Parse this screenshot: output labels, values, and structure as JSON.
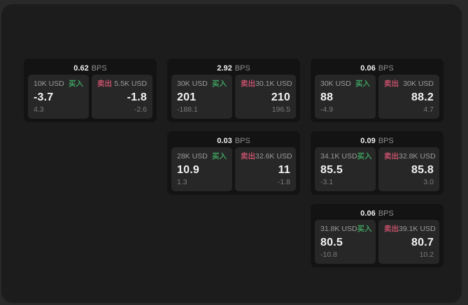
{
  "labels": {
    "bps_unit": "BPS",
    "buy": "买入",
    "sell": "卖出"
  },
  "colors": {
    "buy_green": "#3f9e5f",
    "sell_red": "#c2506a",
    "panel_background": "#1c1c1c",
    "card_background": "#131313",
    "tile_background": "#272727"
  },
  "cards": [
    {
      "col": 0,
      "row": 0,
      "bps": "0.62",
      "buy": {
        "amount": "10K USD",
        "price": "-3.7",
        "delta": "4.3"
      },
      "sell": {
        "amount": "5.5K USD",
        "price": "-1.8",
        "delta": "-2.6"
      }
    },
    {
      "col": 1,
      "row": 0,
      "bps": "2.92",
      "buy": {
        "amount": "30K USD",
        "price": "201",
        "delta": "-188.1"
      },
      "sell": {
        "amount": "30.1K USD",
        "price": "210",
        "delta": "196.5"
      }
    },
    {
      "col": 2,
      "row": 0,
      "bps": "0.06",
      "buy": {
        "amount": "30K USD",
        "price": "88",
        "delta": "-4.9"
      },
      "sell": {
        "amount": "30K USD",
        "price": "88.2",
        "delta": "4.7"
      }
    },
    {
      "col": 1,
      "row": 1,
      "bps": "0.03",
      "buy": {
        "amount": "28K USD",
        "price": "10.9",
        "delta": "1.3"
      },
      "sell": {
        "amount": "32.6K USD",
        "price": "11",
        "delta": "-1.8"
      }
    },
    {
      "col": 2,
      "row": 1,
      "bps": "0.09",
      "buy": {
        "amount": "34.1K USD",
        "price": "85.5",
        "delta": "-3.1"
      },
      "sell": {
        "amount": "32.8K USD",
        "price": "85.8",
        "delta": "3.0"
      }
    },
    {
      "col": 2,
      "row": 2,
      "bps": "0.06",
      "buy": {
        "amount": "31.8K USD",
        "price": "80.5",
        "delta": "-10.8"
      },
      "sell": {
        "amount": "39.1K USD",
        "price": "80.7",
        "delta": "10.2"
      }
    }
  ]
}
